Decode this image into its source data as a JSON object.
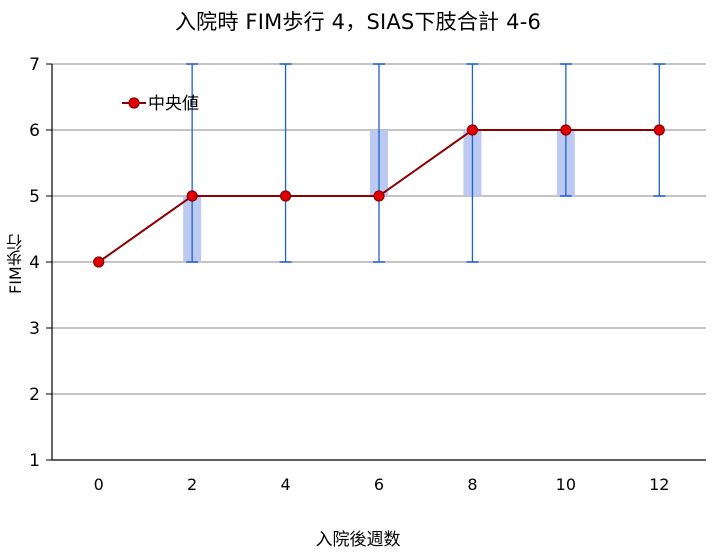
{
  "chart_data": {
    "type": "line",
    "title": "入院時 FIM歩行 4，SIAS下肢合計 4-6",
    "xlabel": "入院後週数",
    "ylabel": "FIM歩行",
    "x": [
      0,
      2,
      4,
      6,
      8,
      10,
      12
    ],
    "xticks": [
      "0",
      "2",
      "4",
      "6",
      "8",
      "10",
      "12"
    ],
    "xlim": [
      -1,
      13
    ],
    "yticks": [
      "1",
      "2",
      "3",
      "4",
      "5",
      "6",
      "7"
    ],
    "ylim": [
      1,
      7
    ],
    "grid": true,
    "legend_position": "top-left",
    "series": [
      {
        "name": "中央値",
        "values": [
          4,
          5,
          5,
          5,
          6,
          6,
          6
        ],
        "color": "#8b0000",
        "marker_color": "#e00000"
      }
    ],
    "error_bars": {
      "color": "#1e5fd6",
      "min": [
        null,
        4,
        4,
        4,
        4,
        5,
        5
      ],
      "max": [
        null,
        7,
        7,
        7,
        7,
        7,
        7
      ]
    },
    "iqr_boxes": {
      "color": "#b8c6f0",
      "low": [
        null,
        4,
        null,
        5,
        5,
        5,
        null
      ],
      "high": [
        null,
        5,
        null,
        6,
        6,
        6,
        null
      ]
    },
    "axis_color": "#000000",
    "grid_color": "#888888"
  }
}
